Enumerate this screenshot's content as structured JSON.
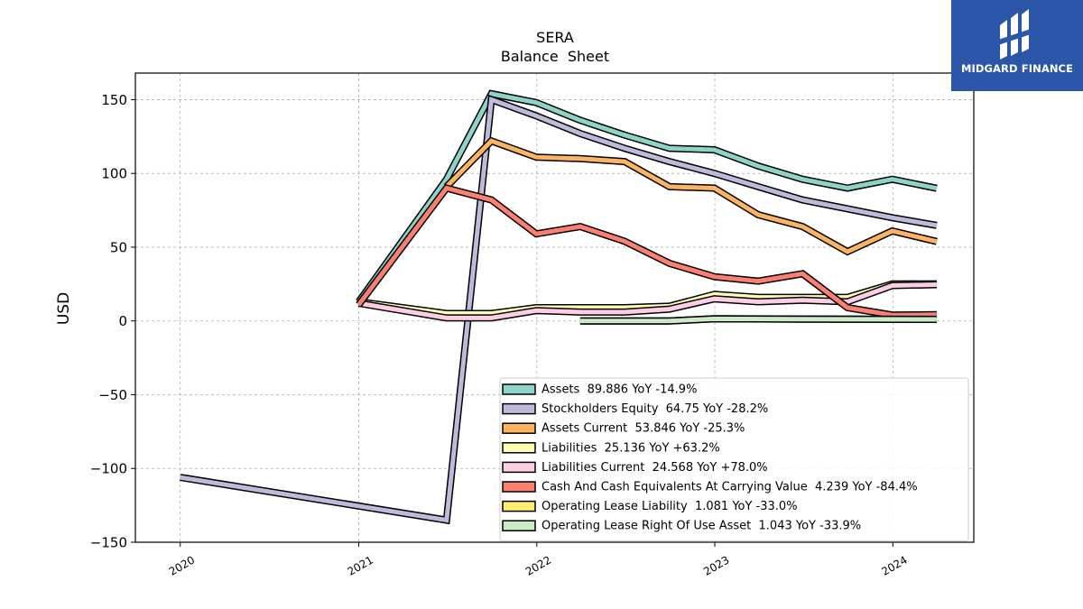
{
  "brand": {
    "name": "MIDGARD FINANCE"
  },
  "chart_data": {
    "type": "line",
    "title": "SERA",
    "subtitle": "Balance  Sheet",
    "ylabel": "USD",
    "xlabel": "",
    "xlim": [
      "2019-10-01",
      "2024-06-15"
    ],
    "ylim": [
      -150,
      168
    ],
    "yticks": [
      -150,
      -100,
      -50,
      0,
      50,
      100,
      150
    ],
    "ytick_labels": [
      "−150",
      "−100",
      "−50",
      "0",
      "50",
      "100",
      "150"
    ],
    "xticks": [
      "2020-01-01",
      "2021-01-01",
      "2022-01-01",
      "2023-01-01",
      "2024-01-01"
    ],
    "xtick_labels": [
      "2020",
      "2021",
      "2022",
      "2023",
      "2024"
    ],
    "grid": true,
    "legend_position": "lower-right",
    "series": [
      {
        "name": "Assets",
        "legend": "Assets  89.886 YoY -14.9%",
        "color": "#8dd3c7",
        "points": [
          [
            "2021-01-01",
            13
          ],
          [
            "2021-06-30",
            96
          ],
          [
            "2021-09-30",
            154
          ],
          [
            "2021-12-31",
            148
          ],
          [
            "2022-03-31",
            136
          ],
          [
            "2022-06-30",
            126
          ],
          [
            "2022-09-30",
            117
          ],
          [
            "2022-12-31",
            116
          ],
          [
            "2023-03-31",
            105
          ],
          [
            "2023-06-30",
            96
          ],
          [
            "2023-09-30",
            90
          ],
          [
            "2023-12-31",
            96
          ],
          [
            "2024-03-31",
            89.886
          ]
        ]
      },
      {
        "name": "Stockholders Equity",
        "legend": "Stockholders Equity  64.75 YoY -28.2%",
        "color": "#bebada",
        "points": [
          [
            "2020-01-01",
            -106
          ],
          [
            "2021-06-30",
            -135
          ],
          [
            "2021-09-30",
            150
          ],
          [
            "2021-12-31",
            139
          ],
          [
            "2022-03-31",
            127
          ],
          [
            "2022-06-30",
            117
          ],
          [
            "2022-09-30",
            108
          ],
          [
            "2022-12-31",
            100
          ],
          [
            "2023-03-31",
            91
          ],
          [
            "2023-06-30",
            82
          ],
          [
            "2023-09-30",
            76
          ],
          [
            "2023-12-31",
            70
          ],
          [
            "2024-03-31",
            64.75
          ]
        ]
      },
      {
        "name": "Assets Current",
        "legend": "Assets Current  53.846 YoY -25.3%",
        "color": "#fdb462",
        "points": [
          [
            "2021-06-30",
            91
          ],
          [
            "2021-09-30",
            122
          ],
          [
            "2021-12-31",
            111
          ],
          [
            "2022-03-31",
            110
          ],
          [
            "2022-06-30",
            108
          ],
          [
            "2022-09-30",
            91
          ],
          [
            "2022-12-31",
            90
          ],
          [
            "2023-03-31",
            72
          ],
          [
            "2023-06-30",
            64
          ],
          [
            "2023-09-30",
            47
          ],
          [
            "2023-12-31",
            61
          ],
          [
            "2024-03-31",
            53.846
          ]
        ]
      },
      {
        "name": "Liabilities",
        "legend": "Liabilities  25.136 YoY +63.2%",
        "color": "#ffffb3",
        "points": [
          [
            "2021-01-01",
            13
          ],
          [
            "2021-06-30",
            5
          ],
          [
            "2021-09-30",
            5
          ],
          [
            "2021-12-31",
            9
          ],
          [
            "2022-03-31",
            9
          ],
          [
            "2022-06-30",
            9
          ],
          [
            "2022-09-30",
            10
          ],
          [
            "2022-12-31",
            18
          ],
          [
            "2023-03-31",
            16
          ],
          [
            "2023-06-30",
            16
          ],
          [
            "2023-09-30",
            16
          ],
          [
            "2023-12-31",
            25
          ],
          [
            "2024-03-31",
            25.136
          ]
        ]
      },
      {
        "name": "Liabilities Current",
        "legend": "Liabilities Current  24.568 YoY +78.0%",
        "color": "#fccde5",
        "points": [
          [
            "2021-01-01",
            12
          ],
          [
            "2021-06-30",
            2
          ],
          [
            "2021-09-30",
            2
          ],
          [
            "2021-12-31",
            7
          ],
          [
            "2022-03-31",
            6
          ],
          [
            "2022-06-30",
            6
          ],
          [
            "2022-09-30",
            8
          ],
          [
            "2022-12-31",
            15
          ],
          [
            "2023-03-31",
            13
          ],
          [
            "2023-06-30",
            14
          ],
          [
            "2023-09-30",
            13
          ],
          [
            "2023-12-31",
            24
          ],
          [
            "2024-03-31",
            24.568
          ]
        ]
      },
      {
        "name": "Cash And Cash Equivalents At Carrying Value",
        "legend": "Cash And Cash Equivalents At Carrying Value  4.239 YoY -84.4%",
        "color": "#fb8072",
        "points": [
          [
            "2021-01-01",
            11
          ],
          [
            "2021-06-30",
            90
          ],
          [
            "2021-09-30",
            82
          ],
          [
            "2021-12-31",
            59
          ],
          [
            "2022-03-31",
            64
          ],
          [
            "2022-06-30",
            54
          ],
          [
            "2022-09-30",
            39
          ],
          [
            "2022-12-31",
            30
          ],
          [
            "2023-03-31",
            27
          ],
          [
            "2023-06-30",
            32
          ],
          [
            "2023-09-30",
            9
          ],
          [
            "2023-12-31",
            4
          ],
          [
            "2024-03-31",
            4.239
          ]
        ]
      },
      {
        "name": "Operating Lease Liability",
        "legend": "Operating Lease Liability  1.081 YoY -33.0%",
        "color": "#ffed6f",
        "points": [
          [
            "2022-03-31",
            0
          ],
          [
            "2022-09-30",
            0
          ],
          [
            "2022-12-31",
            1.5
          ],
          [
            "2023-06-30",
            1.3
          ],
          [
            "2024-03-31",
            1.081
          ]
        ]
      },
      {
        "name": "Operating Lease Right Of Use Asset",
        "legend": "Operating Lease Right Of Use Asset  1.043 YoY -33.9%",
        "color": "#ccebc5",
        "points": [
          [
            "2022-03-31",
            0
          ],
          [
            "2022-09-30",
            0
          ],
          [
            "2022-12-31",
            1.4
          ],
          [
            "2023-06-30",
            1.2
          ],
          [
            "2024-03-31",
            1.043
          ]
        ]
      }
    ]
  }
}
